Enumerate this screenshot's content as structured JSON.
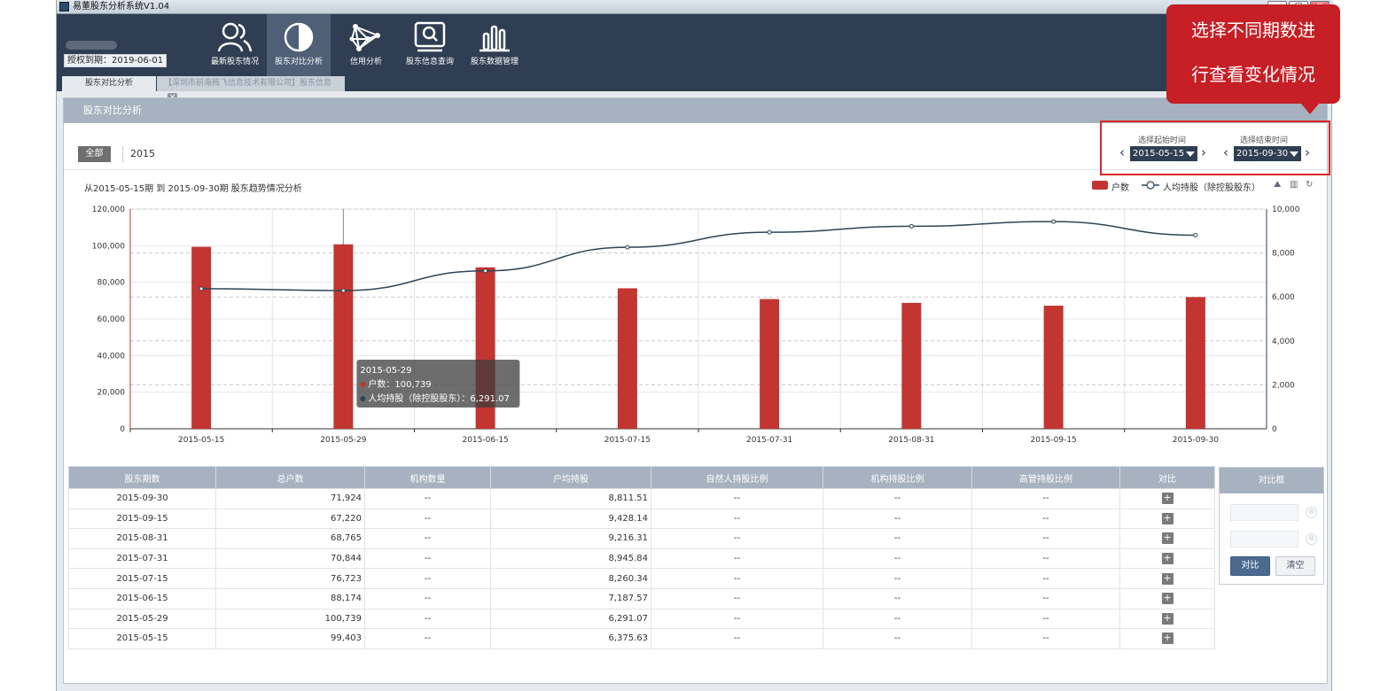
{
  "window": {
    "title": "易董股东分析系统V1.04",
    "min": "─",
    "max": "□",
    "close": "✕"
  },
  "header": {
    "license": "授权到期：2019-06-01",
    "nav": [
      {
        "label": "最新股东情况",
        "icon": "users-icon"
      },
      {
        "label": "股东对比分析",
        "icon": "half-circle-icon"
      },
      {
        "label": "信用分析",
        "icon": "network-icon"
      },
      {
        "label": "股东信息查询",
        "icon": "search-monitor-icon"
      },
      {
        "label": "股东数据管理",
        "icon": "bar-chart-icon"
      }
    ],
    "up_icon": "↑",
    "help_icon": "?"
  },
  "tabs": [
    {
      "label": "股东对比分析"
    },
    {
      "label": "【深圳市前海腾飞信息技术有限公司】股东信息"
    }
  ],
  "tab_close": "×",
  "panel": {
    "title": "股东对比分析",
    "filter_all": "全部",
    "filter_year": "2015",
    "start_label": "选择起始时间",
    "start_value": "2015-05-15",
    "end_label": "选择结束时间",
    "end_value": "2015-09-30",
    "prev": "‹",
    "next": "›"
  },
  "callout": {
    "line1": "选择不同期数进",
    "line2": "行查看变化情况"
  },
  "chart_data": {
    "type": "bar",
    "title": "从2015-05-15期 到 2015-09-30期 股东趋势情况分析",
    "categories": [
      "2015-05-15",
      "2015-05-29",
      "2015-06-15",
      "2015-07-15",
      "2015-07-31",
      "2015-08-31",
      "2015-09-15",
      "2015-09-30"
    ],
    "series": [
      {
        "name": "户数",
        "type": "bar",
        "axis": "left",
        "color": "#c23531",
        "values": [
          99403,
          100739,
          88174,
          76723,
          70844,
          68765,
          67220,
          71924
        ]
      },
      {
        "name": "人均持股（除控股股东）",
        "type": "line",
        "axis": "right",
        "color": "#2f4554",
        "values": [
          6375.63,
          6291.07,
          7187.57,
          8260.34,
          8945.84,
          9216.31,
          9428.14,
          8811.51
        ]
      }
    ],
    "y_left": {
      "min": 0,
      "max": 120000,
      "ticks": [
        "0",
        "20,000",
        "40,000",
        "60,000",
        "80,000",
        "100,000",
        "120,000"
      ]
    },
    "y_right": {
      "min": 0,
      "max": 10000,
      "ticks": [
        "0",
        "2,000",
        "4,000",
        "6,000",
        "8,000",
        "10,000"
      ]
    },
    "grid": true,
    "legend": "top-right",
    "tooltip": {
      "index": 1,
      "title": "2015-05-29",
      "row1": "户数：100,739",
      "row2": "人均持股（除控股股东）：6,291.07"
    }
  },
  "legend": {
    "bar": "户数",
    "line": "人均持股（除控股股东）"
  },
  "table": {
    "headers": [
      "股东期数",
      "总户数",
      "机构数量",
      "户均持股",
      "自然人持股比例",
      "机构持股比例",
      "高管持股比例",
      "对比"
    ],
    "rows": [
      [
        "2015-09-30",
        "71,924",
        "--",
        "8,811.51",
        "--",
        "--",
        "--"
      ],
      [
        "2015-09-15",
        "67,220",
        "--",
        "9,428.14",
        "--",
        "--",
        "--"
      ],
      [
        "2015-08-31",
        "68,765",
        "--",
        "9,216.31",
        "--",
        "--",
        "--"
      ],
      [
        "2015-07-31",
        "70,844",
        "--",
        "8,945.84",
        "--",
        "--",
        "--"
      ],
      [
        "2015-07-15",
        "76,723",
        "--",
        "8,260.34",
        "--",
        "--",
        "--"
      ],
      [
        "2015-06-15",
        "88,174",
        "--",
        "7,187.57",
        "--",
        "--",
        "--"
      ],
      [
        "2015-05-29",
        "100,739",
        "--",
        "6,291.07",
        "--",
        "--",
        "--"
      ],
      [
        "2015-05-15",
        "99,403",
        "--",
        "6,375.63",
        "--",
        "--",
        "--"
      ]
    ],
    "add": "+"
  },
  "compare": {
    "title": "对比框",
    "clear_x": "⊗",
    "btn_compare": "对比",
    "btn_clear": "清空"
  }
}
